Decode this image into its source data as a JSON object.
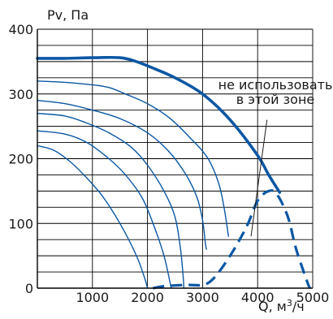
{
  "chart_data": {
    "type": "line",
    "ylabel": "Pv, Па",
    "xlabel_prefix": "Q, м",
    "xlabel_sup": "3",
    "xlabel_suffix": "/ч",
    "xlim": [
      0,
      5000
    ],
    "ylim": [
      0,
      400
    ],
    "x_ticks": [
      0,
      1000,
      2000,
      3000,
      4000,
      5000
    ],
    "x_tick_labels": [
      "",
      "1000",
      "2000",
      "3000",
      "4000",
      "5000"
    ],
    "y_ticks": [
      0,
      100,
      200,
      300,
      400
    ],
    "y_tick_labels": [
      "0",
      "100",
      "200",
      "300",
      "400"
    ],
    "grid": true,
    "colors": {
      "curve": "#0b57a4",
      "grid": "#000000",
      "text": "#1a1a1a"
    },
    "series": [
      {
        "style": "thick",
        "points": [
          [
            0,
            355
          ],
          [
            500,
            355
          ],
          [
            1000,
            356
          ],
          [
            1500,
            356
          ],
          [
            1800,
            350
          ],
          [
            2100,
            340
          ],
          [
            2500,
            325
          ],
          [
            3000,
            300
          ],
          [
            3500,
            260
          ],
          [
            4000,
            205
          ],
          [
            4200,
            175
          ],
          [
            4400,
            148
          ]
        ]
      },
      {
        "style": "thin",
        "points": [
          [
            0,
            320
          ],
          [
            500,
            318
          ],
          [
            1000,
            314
          ],
          [
            1300,
            310
          ],
          [
            1600,
            300
          ],
          [
            2000,
            285
          ],
          [
            2400,
            263
          ],
          [
            2800,
            230
          ],
          [
            3100,
            200
          ],
          [
            3300,
            160
          ],
          [
            3400,
            120
          ],
          [
            3470,
            80
          ]
        ]
      },
      {
        "style": "thin",
        "points": [
          [
            0,
            290
          ],
          [
            500,
            285
          ],
          [
            1000,
            275
          ],
          [
            1500,
            262
          ],
          [
            2000,
            240
          ],
          [
            2400,
            210
          ],
          [
            2700,
            175
          ],
          [
            2900,
            140
          ],
          [
            3000,
            105
          ],
          [
            3050,
            70
          ],
          [
            3070,
            60
          ]
        ]
      },
      {
        "style": "thin",
        "points": [
          [
            0,
            270
          ],
          [
            500,
            266
          ],
          [
            900,
            255
          ],
          [
            1300,
            240
          ],
          [
            1700,
            218
          ],
          [
            2000,
            190
          ],
          [
            2300,
            150
          ],
          [
            2500,
            110
          ],
          [
            2600,
            60
          ],
          [
            2650,
            15
          ],
          [
            2660,
            0
          ]
        ]
      },
      {
        "style": "thin",
        "points": [
          [
            0,
            243
          ],
          [
            500,
            238
          ],
          [
            900,
            225
          ],
          [
            1300,
            200
          ],
          [
            1600,
            175
          ],
          [
            1900,
            140
          ],
          [
            2100,
            100
          ],
          [
            2300,
            50
          ],
          [
            2430,
            0
          ]
        ]
      },
      {
        "style": "thin",
        "points": [
          [
            0,
            220
          ],
          [
            300,
            213
          ],
          [
            600,
            195
          ],
          [
            900,
            170
          ],
          [
            1200,
            140
          ],
          [
            1500,
            100
          ],
          [
            1800,
            50
          ],
          [
            1950,
            15
          ],
          [
            2000,
            0
          ]
        ]
      },
      {
        "style": "dashed",
        "points": [
          [
            2100,
            0
          ],
          [
            2300,
            3
          ],
          [
            2700,
            5
          ],
          [
            3000,
            5
          ],
          [
            3200,
            15
          ],
          [
            3500,
            50
          ],
          [
            3800,
            95
          ],
          [
            4000,
            135
          ],
          [
            4200,
            150
          ],
          [
            4350,
            145
          ],
          [
            4550,
            110
          ],
          [
            4700,
            60
          ],
          [
            4900,
            10
          ],
          [
            4950,
            0
          ]
        ]
      }
    ],
    "annotation": {
      "lines": [
        "не использовать",
        "в этой зоне"
      ],
      "pointer_from": [
        4170,
        260
      ],
      "pointer_to": [
        3880,
        80
      ]
    }
  }
}
